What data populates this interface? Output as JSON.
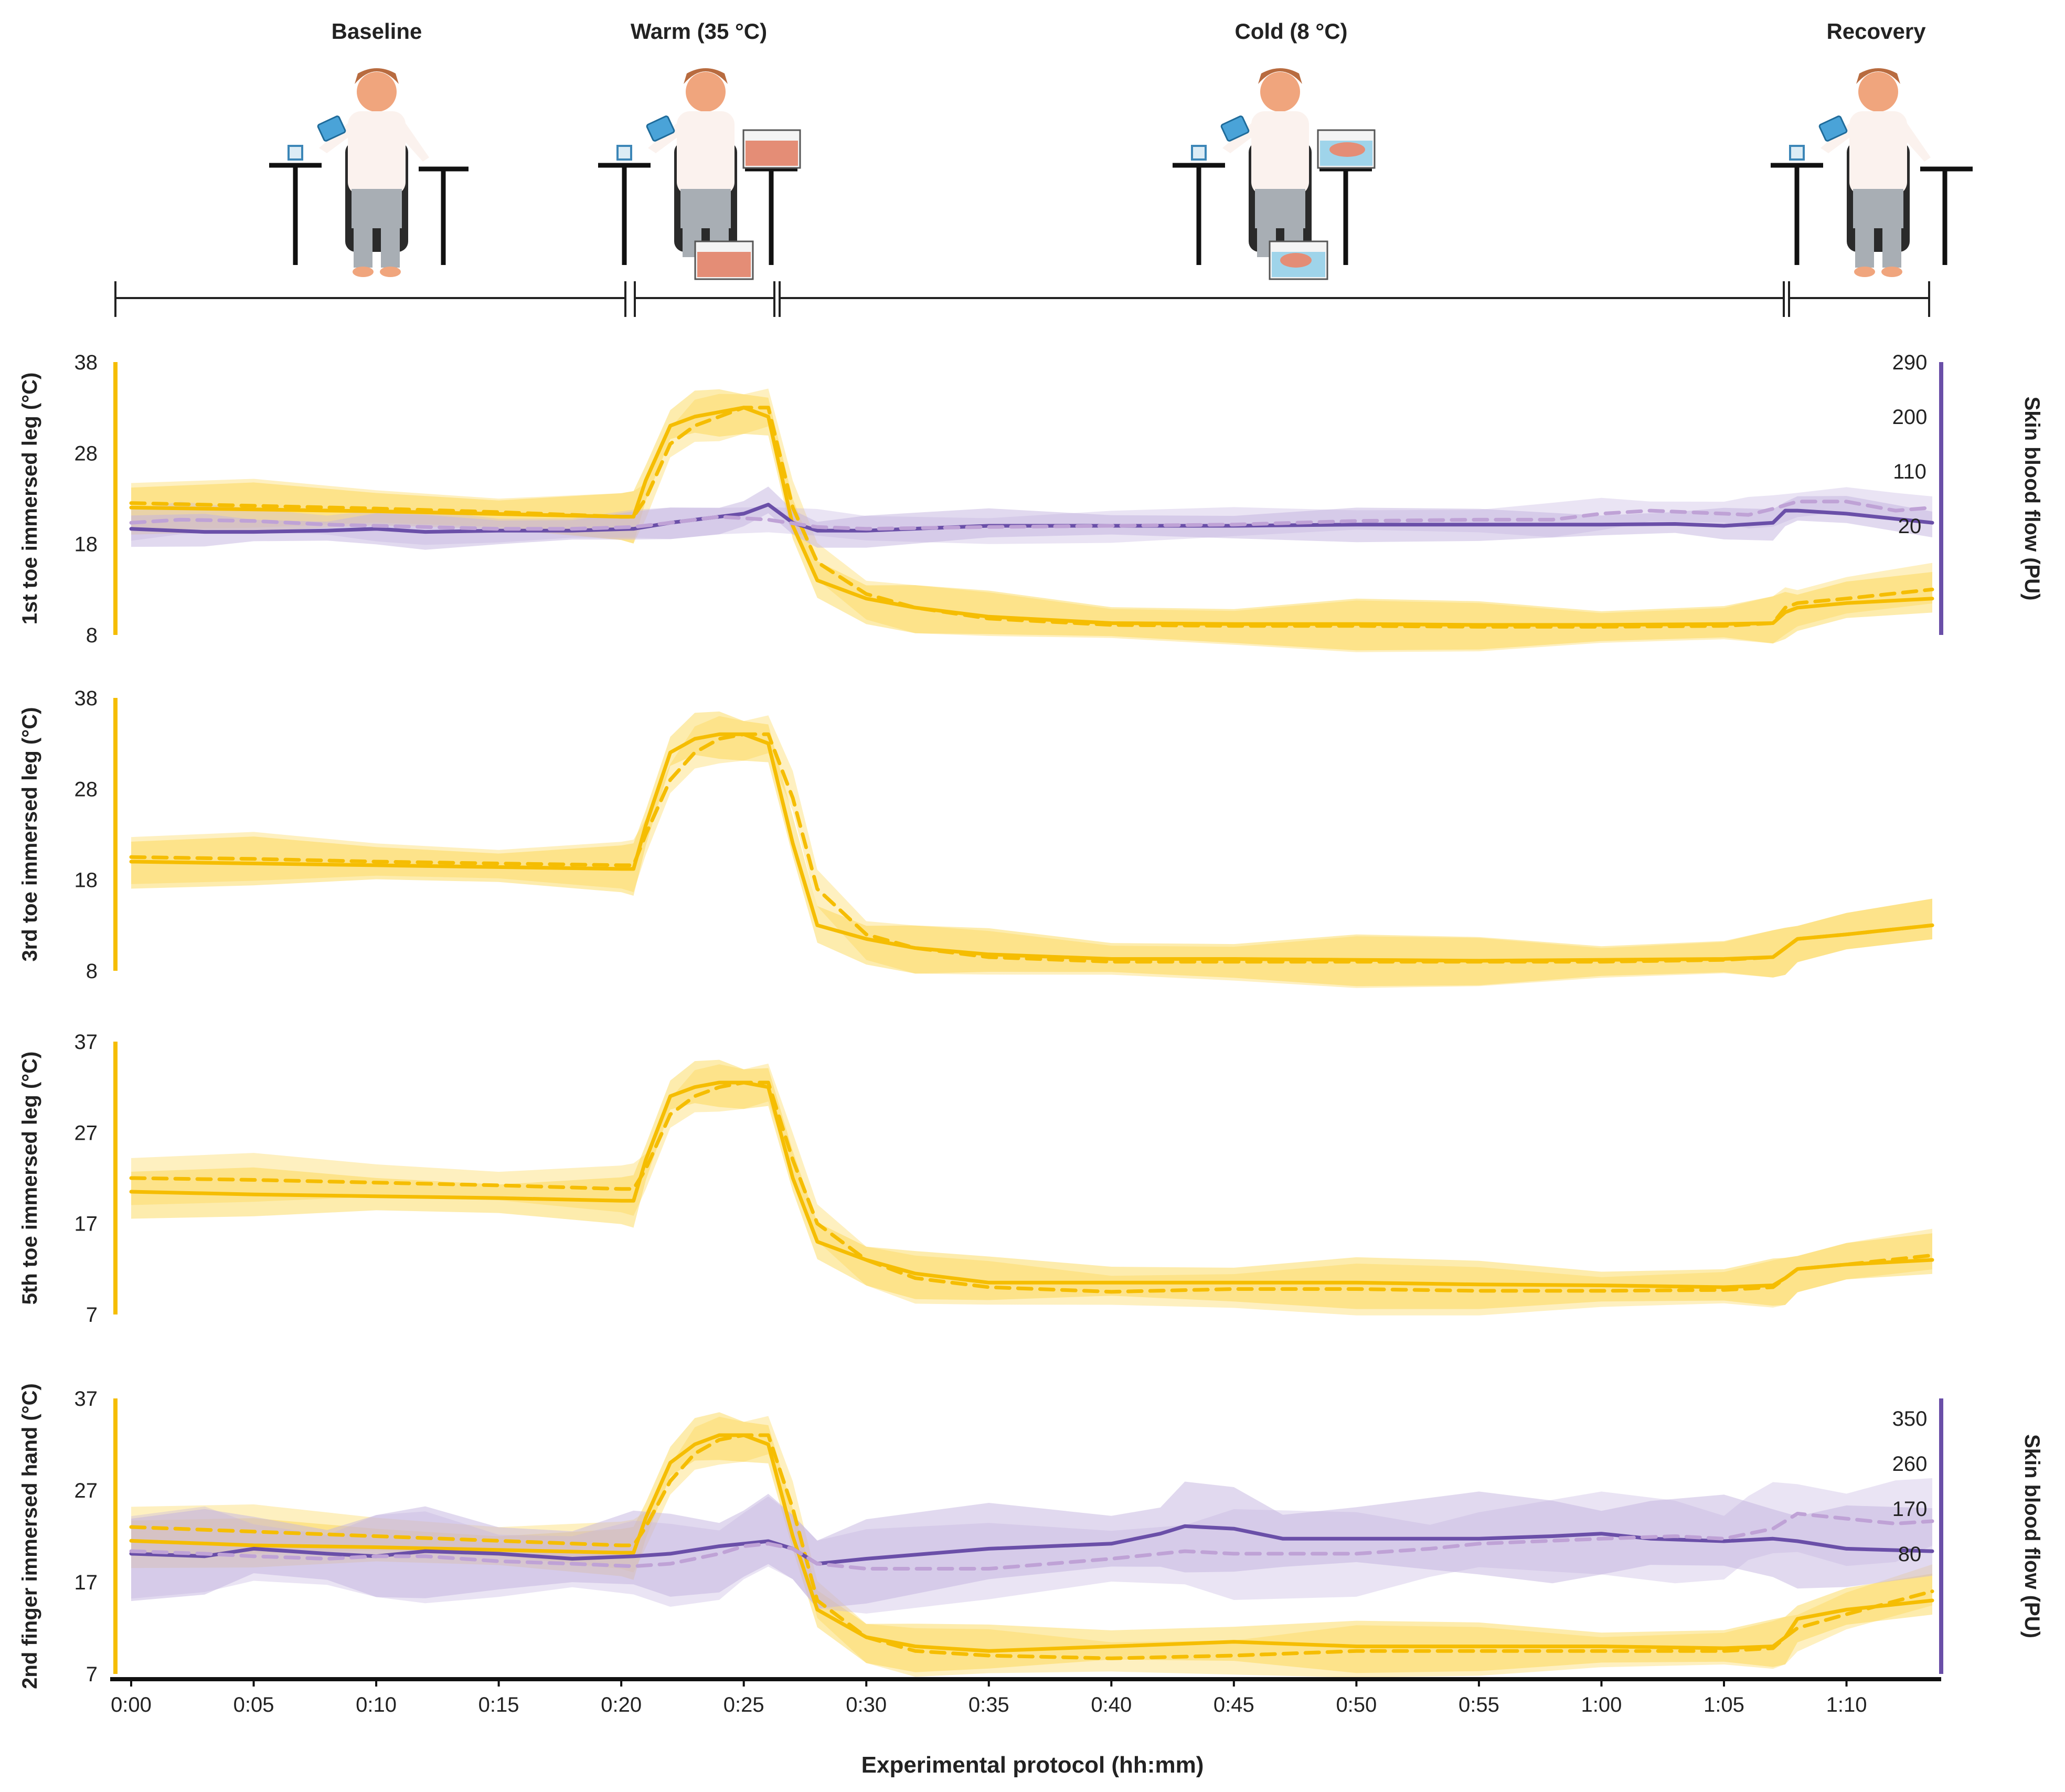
{
  "phases": [
    {
      "label": "Baseline",
      "start": 0,
      "end": 20.5
    },
    {
      "label": "Warm (35 °C)",
      "start": 20.5,
      "end": 26.5
    },
    {
      "label": "Cold (8 °C)",
      "start": 26.5,
      "end": 67.5
    },
    {
      "label": "Recovery",
      "start": 67.5,
      "end": 73.5
    }
  ],
  "x_axis": {
    "label": "Experimental protocol (hh:mm)",
    "ticks": [
      0,
      5,
      10,
      15,
      20,
      25,
      30,
      35,
      40,
      45,
      50,
      55,
      60,
      65,
      70
    ],
    "tick_labels": [
      "0:00",
      "0:05",
      "0:10",
      "0:15",
      "0:20",
      "0:25",
      "0:30",
      "0:35",
      "0:40",
      "0:45",
      "0:50",
      "0:55",
      "1:00",
      "1:05",
      "1:10"
    ]
  },
  "colors": {
    "temperature": "#f5bd02",
    "temperature_band": "#fbd54a",
    "blood_flow": "#6a4fa8",
    "blood_flow_band": "#c3b3e0",
    "blood_flow_dashed": "#bfa2d6",
    "axis_line_left": "#f5bd02",
    "axis_line_right": "#6a4fa8"
  },
  "chart_data": [
    {
      "type": "line",
      "panel": "1st toe",
      "ylabel": "1st toe immersed leg (°C)",
      "ylim": [
        8,
        38
      ],
      "yticks": [
        8,
        18,
        28,
        38
      ],
      "y2label": "Skin blood flow (PU)",
      "y2lim": [
        -160,
        290
      ],
      "y2ticks": [
        20,
        110,
        200,
        290
      ],
      "series": [
        {
          "name": "temperature solid",
          "axis": "left",
          "style": "solid",
          "x": [
            0,
            5,
            10,
            15,
            20,
            20.5,
            21,
            22,
            23,
            24,
            25,
            26,
            27,
            28,
            30,
            32,
            35,
            40,
            45,
            50,
            55,
            60,
            65,
            67,
            67.5,
            68,
            70,
            73.5
          ],
          "y": [
            22,
            21.8,
            21.6,
            21.3,
            21.0,
            21.0,
            25,
            31,
            32,
            32.5,
            33,
            32,
            20,
            14,
            12,
            11,
            10,
            9.3,
            9.2,
            9.2,
            9.1,
            9.1,
            9.2,
            9.3,
            10.5,
            11,
            11.5,
            12
          ]
        },
        {
          "name": "temperature dashed",
          "axis": "left",
          "style": "dashed",
          "x": [
            0,
            5,
            10,
            15,
            20,
            20.5,
            21,
            22,
            23,
            24,
            25,
            26,
            27,
            28,
            30,
            32,
            35,
            40,
            45,
            50,
            55,
            60,
            65,
            67,
            67.5,
            68,
            70,
            73.5
          ],
          "y": [
            22.5,
            22.2,
            21.9,
            21.5,
            21.0,
            21.0,
            23,
            29,
            31,
            32,
            33,
            33,
            22,
            16,
            12.5,
            11,
            9.8,
            9.1,
            9,
            9,
            8.9,
            8.9,
            9,
            9.3,
            11,
            11.5,
            12,
            13
          ]
        },
        {
          "name": "blood flow solid",
          "axis": "right",
          "style": "solid",
          "x": [
            0,
            3,
            5,
            8,
            10,
            12,
            15,
            18,
            20.5,
            22,
            24,
            25,
            26,
            27,
            28,
            30,
            35,
            40,
            45,
            50,
            55,
            60,
            63,
            65,
            67,
            67.5,
            68,
            70,
            73.5
          ],
          "y": [
            15,
            10,
            10,
            12,
            15,
            10,
            12,
            12,
            15,
            25,
            35,
            40,
            55,
            25,
            12,
            12,
            20,
            20,
            20,
            22,
            22,
            22,
            23,
            20,
            25,
            45,
            45,
            40,
            25
          ]
        },
        {
          "name": "blood flow dashed",
          "axis": "right",
          "style": "dashed",
          "x": [
            0,
            2,
            5,
            8,
            10,
            12,
            15,
            18,
            20.5,
            22,
            24,
            26,
            28,
            30,
            35,
            40,
            45,
            50,
            55,
            58,
            60,
            62,
            65,
            66,
            67,
            68,
            70,
            72,
            73.5
          ],
          "y": [
            25,
            30,
            28,
            22,
            20,
            18,
            15,
            15,
            18,
            25,
            35,
            30,
            18,
            15,
            18,
            20,
            22,
            28,
            30,
            30,
            40,
            45,
            40,
            38,
            48,
            60,
            60,
            45,
            50
          ]
        }
      ]
    },
    {
      "type": "line",
      "panel": "3rd toe",
      "ylabel": "3rd toe immersed leg (°C)",
      "ylim": [
        8,
        38
      ],
      "yticks": [
        8,
        18,
        28,
        38
      ],
      "series": [
        {
          "name": "temperature solid",
          "axis": "left",
          "style": "solid",
          "x": [
            0,
            5,
            10,
            15,
            20,
            20.5,
            21,
            22,
            23,
            24,
            25,
            26,
            27,
            28,
            30,
            32,
            35,
            40,
            45,
            50,
            55,
            60,
            65,
            67,
            67.5,
            68,
            70,
            73.5
          ],
          "y": [
            20,
            19.8,
            19.6,
            19.4,
            19.2,
            19.2,
            24,
            32,
            33.5,
            34,
            34,
            33,
            22,
            13,
            11.5,
            10.5,
            9.8,
            9.3,
            9.3,
            9.2,
            9.1,
            9.2,
            9.3,
            9.5,
            10.5,
            11.5,
            12,
            13
          ]
        },
        {
          "name": "temperature dashed",
          "axis": "left",
          "style": "dashed",
          "x": [
            0,
            5,
            10,
            15,
            20,
            20.5,
            21,
            22,
            23,
            24,
            25,
            26,
            27,
            28,
            30,
            32,
            35,
            40,
            45,
            50,
            55,
            60,
            65,
            67,
            67.5,
            68,
            70,
            73.5
          ],
          "y": [
            20.5,
            20.3,
            20,
            19.8,
            19.6,
            19.6,
            23,
            29,
            32,
            33.5,
            34,
            34,
            27,
            17,
            12,
            10.5,
            9.5,
            9,
            9,
            9,
            9,
            9,
            9.2,
            9.5,
            10.5,
            11.5,
            12,
            13
          ]
        }
      ]
    },
    {
      "type": "line",
      "panel": "5th toe",
      "ylabel": "5th toe immersed leg (°C)",
      "ylim": [
        7,
        37
      ],
      "yticks": [
        7,
        17,
        27,
        37
      ],
      "series": [
        {
          "name": "temperature solid",
          "axis": "left",
          "style": "solid",
          "x": [
            0,
            5,
            10,
            15,
            20,
            20.5,
            21,
            22,
            23,
            24,
            25,
            26,
            27,
            28,
            30,
            32,
            35,
            40,
            45,
            50,
            55,
            60,
            65,
            67,
            67.5,
            68,
            70,
            73.5
          ],
          "y": [
            20.5,
            20.2,
            20,
            19.8,
            19.5,
            19.5,
            24,
            31,
            32,
            32.5,
            32.5,
            32,
            22,
            15,
            13,
            11.5,
            10.5,
            10.5,
            10.5,
            10.5,
            10.3,
            10.2,
            10,
            10.2,
            11,
            12,
            12.5,
            13
          ]
        },
        {
          "name": "temperature dashed",
          "axis": "left",
          "style": "dashed",
          "x": [
            0,
            5,
            10,
            15,
            20,
            20.5,
            21,
            22,
            23,
            24,
            25,
            26,
            27,
            28,
            30,
            32,
            35,
            40,
            45,
            50,
            55,
            60,
            65,
            67,
            67.5,
            68,
            70,
            73.5
          ],
          "y": [
            22,
            21.8,
            21.5,
            21.2,
            20.8,
            20.8,
            23,
            29,
            31,
            32,
            32.5,
            32.5,
            24,
            17,
            13,
            11,
            10,
            9.5,
            9.8,
            9.8,
            9.6,
            9.6,
            9.7,
            10,
            11,
            12,
            12.5,
            13.5
          ]
        }
      ]
    },
    {
      "type": "line",
      "panel": "2nd finger",
      "ylabel": "2nd finger immersed hand (°C)",
      "ylim": [
        7,
        37
      ],
      "yticks": [
        7,
        17,
        27,
        37
      ],
      "y2label": "Skin blood flow (PU)",
      "y2lim": [
        -160,
        390
      ],
      "y2ticks": [
        80,
        170,
        260,
        350
      ],
      "series": [
        {
          "name": "temperature solid",
          "axis": "left",
          "style": "solid",
          "x": [
            0,
            5,
            10,
            15,
            20,
            20.5,
            21,
            22,
            23,
            24,
            25,
            26,
            27,
            28,
            30,
            32,
            35,
            40,
            45,
            50,
            55,
            60,
            65,
            67,
            67.5,
            68,
            70,
            73.5
          ],
          "y": [
            21.5,
            21,
            20.8,
            20.5,
            20.2,
            20.2,
            24,
            30,
            32,
            33,
            33,
            32,
            22,
            14,
            11,
            10,
            9.5,
            10,
            10.5,
            10,
            10,
            10,
            9.8,
            10,
            11,
            13,
            14,
            15
          ]
        },
        {
          "name": "temperature dashed",
          "axis": "left",
          "style": "dashed",
          "x": [
            0,
            5,
            10,
            15,
            20,
            20.5,
            21,
            22,
            23,
            24,
            25,
            26,
            27,
            28,
            30,
            32,
            35,
            40,
            45,
            50,
            55,
            60,
            65,
            67,
            67.5,
            68,
            70,
            73.5
          ],
          "y": [
            23,
            22.5,
            22,
            21.5,
            21,
            21,
            23,
            28,
            31,
            32.5,
            33,
            33,
            25,
            15,
            11,
            9.5,
            9,
            8.7,
            9,
            9.5,
            9.5,
            9.5,
            9.5,
            9.8,
            11,
            12,
            13.5,
            16
          ]
        },
        {
          "name": "blood flow solid",
          "axis": "right",
          "style": "solid",
          "x": [
            0,
            3,
            5,
            8,
            10,
            12,
            15,
            18,
            20.5,
            22,
            24,
            25,
            26,
            27,
            28,
            30,
            35,
            40,
            42,
            43,
            45,
            47,
            50,
            55,
            58,
            60,
            62,
            65,
            67,
            68,
            70,
            73.5
          ],
          "y": [
            80,
            75,
            90,
            80,
            75,
            85,
            80,
            70,
            75,
            80,
            95,
            100,
            105,
            90,
            60,
            70,
            90,
            100,
            120,
            135,
            130,
            110,
            110,
            110,
            115,
            120,
            110,
            105,
            110,
            105,
            90,
            85
          ]
        },
        {
          "name": "blood flow dashed",
          "axis": "right",
          "style": "dashed",
          "x": [
            0,
            3,
            5,
            8,
            10,
            12,
            15,
            18,
            20.5,
            22,
            24,
            25,
            26,
            27,
            28,
            30,
            35,
            40,
            43,
            45,
            50,
            53,
            55,
            60,
            63,
            65,
            66,
            67,
            68,
            70,
            72,
            73.5
          ],
          "y": [
            85,
            80,
            75,
            70,
            75,
            75,
            65,
            60,
            55,
            60,
            80,
            95,
            100,
            90,
            60,
            50,
            50,
            70,
            85,
            80,
            80,
            90,
            100,
            110,
            115,
            110,
            120,
            130,
            160,
            150,
            140,
            145
          ]
        }
      ]
    }
  ]
}
